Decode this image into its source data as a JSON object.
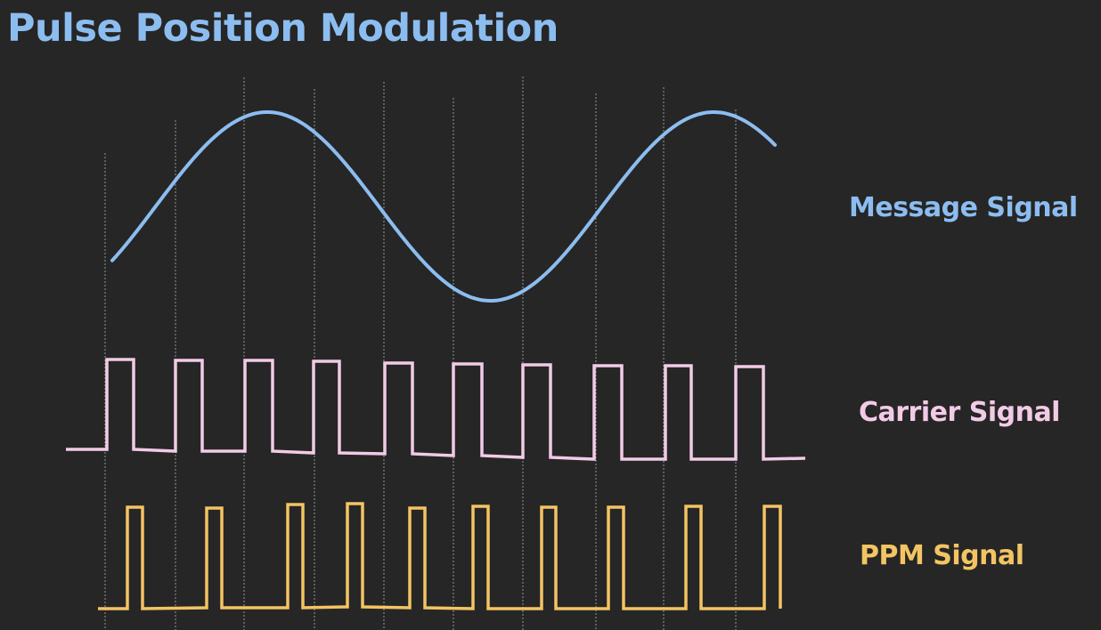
{
  "title": "Pulse Position Modulation",
  "labels": {
    "message": "Message Signal",
    "carrier": "Carrier Signal",
    "ppm": "PPM Signal"
  },
  "colors": {
    "background": "#262626",
    "title": "#8cbdf0",
    "message": "#8cbdf0",
    "carrier": "#f2cbe6",
    "ppm": "#f3c463",
    "gridline": "#c8c8c8"
  },
  "signals": {
    "carrier_pulse_count": 10,
    "ppm_pulse_count": 10
  }
}
